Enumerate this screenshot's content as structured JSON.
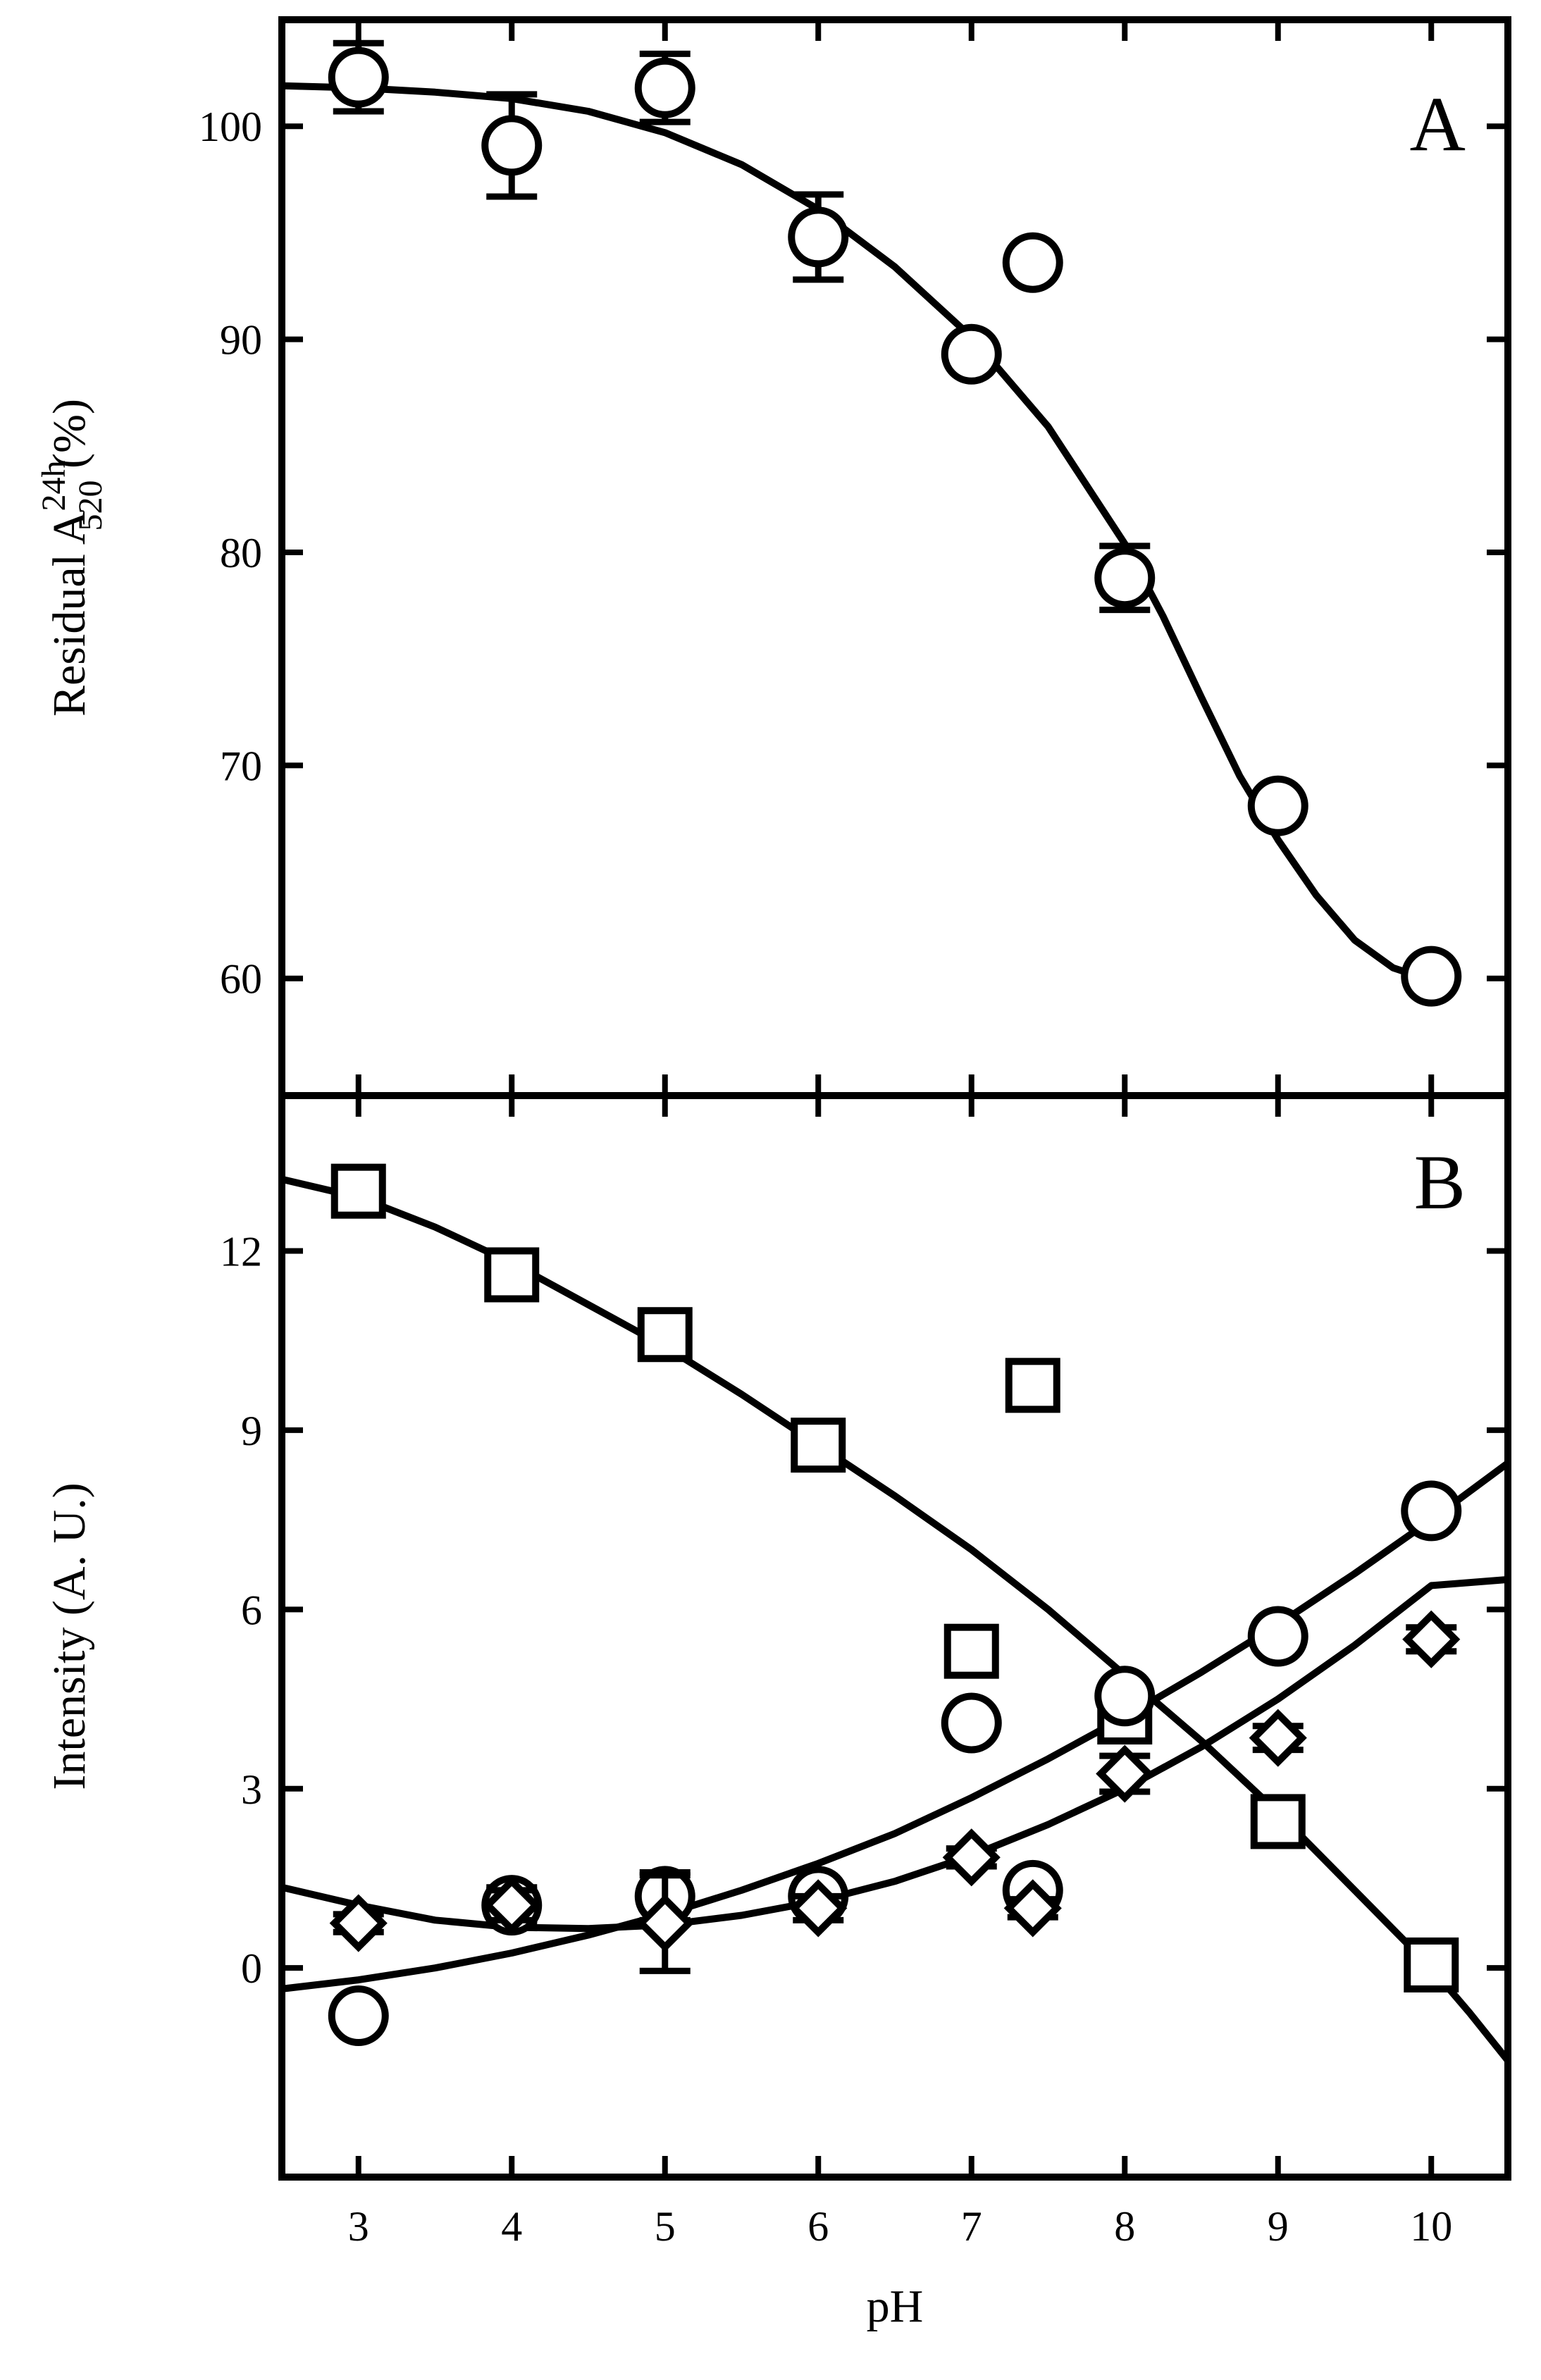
{
  "chart_data": [
    {
      "panel": "A",
      "type": "scatter",
      "panel_label": "A",
      "ylabel": {
        "prefix": "Residual A",
        "superscript": "24h",
        "subscript": "520",
        "suffix": " (%)"
      },
      "xlabel": "",
      "xlim": [
        2.5,
        10.5
      ],
      "ylim": [
        54.5,
        105
      ],
      "xticks": [
        3,
        4,
        5,
        6,
        7,
        8,
        9,
        10
      ],
      "yticks": [
        60,
        70,
        80,
        90,
        100
      ],
      "grid": false,
      "series": [
        {
          "marker": "circle",
          "points": [
            {
              "x": 3,
              "y": 102.3,
              "err": 1.6
            },
            {
              "x": 4,
              "y": 99.1,
              "err": 2.4
            },
            {
              "x": 5,
              "y": 101.8,
              "err": 1.6
            },
            {
              "x": 6,
              "y": 94.8,
              "err": 2.0
            },
            {
              "x": 7,
              "y": 89.3,
              "err": 0.5
            },
            {
              "x": 7.4,
              "y": 93.6,
              "err": 0.5
            },
            {
              "x": 8,
              "y": 78.8,
              "err": 1.5
            },
            {
              "x": 9,
              "y": 68.1,
              "err": 0.6
            },
            {
              "x": 10,
              "y": 60.1,
              "err": 0.5
            }
          ]
        }
      ],
      "fits": [
        {
          "points": [
            [
              2.5,
              101.9
            ],
            [
              3,
              101.8
            ],
            [
              3.5,
              101.6
            ],
            [
              4,
              101.3
            ],
            [
              4.5,
              100.7
            ],
            [
              5,
              99.7
            ],
            [
              5.5,
              98.2
            ],
            [
              6,
              96.1
            ],
            [
              6.5,
              93.4
            ],
            [
              7,
              90.1
            ],
            [
              7.5,
              85.9
            ],
            [
              8,
              80.4
            ],
            [
              8.25,
              77.0
            ],
            [
              8.5,
              73.2
            ],
            [
              8.75,
              69.5
            ],
            [
              9,
              66.5
            ],
            [
              9.25,
              63.9
            ],
            [
              9.5,
              61.8
            ],
            [
              9.75,
              60.5
            ],
            [
              10,
              59.9
            ]
          ]
        }
      ]
    },
    {
      "panel": "B",
      "type": "scatter",
      "panel_label": "B",
      "ylabel": "Intensity (A. U.)",
      "xlabel": "pH",
      "xlim": [
        2.5,
        10.5
      ],
      "ylim": [
        -3.5,
        14.6
      ],
      "xticks": [
        3,
        4,
        5,
        6,
        7,
        8,
        9,
        10
      ],
      "yticks": [
        0,
        3,
        6,
        9,
        12
      ],
      "grid": false,
      "series": [
        {
          "marker": "square",
          "points": [
            {
              "x": 3,
              "y": 13.0,
              "err": 0.4
            },
            {
              "x": 4,
              "y": 11.6,
              "err": 0.3
            },
            {
              "x": 5,
              "y": 10.6,
              "err": 0.2
            },
            {
              "x": 6,
              "y": 8.75,
              "err": 0.15
            },
            {
              "x": 7,
              "y": 5.3,
              "err": 0.2
            },
            {
              "x": 7.4,
              "y": 9.75,
              "err": 0.35
            },
            {
              "x": 8,
              "y": 4.2,
              "err": 0.3
            },
            {
              "x": 9,
              "y": 2.45,
              "err": 0.15
            },
            {
              "x": 10,
              "y": 0.05,
              "err": 0.15
            }
          ]
        },
        {
          "marker": "circle",
          "points": [
            {
              "x": 3,
              "y": -0.8,
              "err": 0.2
            },
            {
              "x": 4,
              "y": 1.05,
              "err": 0.3
            },
            {
              "x": 5,
              "y": 1.2,
              "err": 0.4
            },
            {
              "x": 6,
              "y": 1.2,
              "err": 0.2
            },
            {
              "x": 7,
              "y": 4.1,
              "err": 0.15
            },
            {
              "x": 7.4,
              "y": 1.3,
              "err": 0.15
            },
            {
              "x": 8,
              "y": 4.55,
              "err": 0.15
            },
            {
              "x": 9,
              "y": 5.55,
              "err": 0.15
            },
            {
              "x": 10,
              "y": 7.65,
              "err": 0.2
            }
          ]
        },
        {
          "marker": "diamond",
          "points": [
            {
              "x": 3,
              "y": 0.75,
              "err": 0.15
            },
            {
              "x": 4,
              "y": 1.05,
              "err": 0.25
            },
            {
              "x": 5,
              "y": 0.75,
              "err": 0.8
            },
            {
              "x": 6,
              "y": 1.0,
              "err": 0.2
            },
            {
              "x": 7,
              "y": 1.85,
              "err": 0.15
            },
            {
              "x": 7.4,
              "y": 1.0,
              "err": 0.15
            },
            {
              "x": 8,
              "y": 3.25,
              "err": 0.3
            },
            {
              "x": 9,
              "y": 3.85,
              "err": 0.2
            },
            {
              "x": 10,
              "y": 5.5,
              "err": 0.2
            }
          ]
        }
      ],
      "fits": [
        {
          "points": [
            [
              2.5,
              13.2
            ],
            [
              3,
              12.9
            ],
            [
              3.5,
              12.4
            ],
            [
              4,
              11.8
            ],
            [
              4.5,
              11.1
            ],
            [
              5,
              10.4
            ],
            [
              5.5,
              9.6
            ],
            [
              6,
              8.75
            ],
            [
              6.5,
              7.9
            ],
            [
              7,
              7.0
            ],
            [
              7.5,
              6.0
            ],
            [
              8,
              4.9
            ],
            [
              8.5,
              3.8
            ],
            [
              9,
              2.6
            ],
            [
              9.5,
              1.3
            ],
            [
              10,
              0.0
            ],
            [
              10.25,
              -0.75
            ],
            [
              10.5,
              -1.55
            ]
          ]
        },
        {
          "points": [
            [
              2.5,
              -0.35
            ],
            [
              3,
              -0.2
            ],
            [
              3.5,
              0.0
            ],
            [
              4,
              0.25
            ],
            [
              4.5,
              0.55
            ],
            [
              5,
              0.9
            ],
            [
              5.5,
              1.3
            ],
            [
              6,
              1.75
            ],
            [
              6.5,
              2.25
            ],
            [
              7,
              2.85
            ],
            [
              7.5,
              3.5
            ],
            [
              8,
              4.2
            ],
            [
              8.5,
              4.95
            ],
            [
              9,
              5.75
            ],
            [
              9.5,
              6.6
            ],
            [
              10,
              7.5
            ],
            [
              10.5,
              8.45
            ]
          ]
        },
        {
          "points": [
            [
              2.5,
              1.35
            ],
            [
              3,
              1.05
            ],
            [
              3.5,
              0.8
            ],
            [
              4,
              0.68
            ],
            [
              4.5,
              0.66
            ],
            [
              5,
              0.72
            ],
            [
              5.5,
              0.88
            ],
            [
              6,
              1.12
            ],
            [
              6.5,
              1.45
            ],
            [
              7,
              1.88
            ],
            [
              7.5,
              2.4
            ],
            [
              8,
              3.0
            ],
            [
              8.5,
              3.7
            ],
            [
              9,
              4.5
            ],
            [
              9.5,
              5.4
            ],
            [
              10,
              6.4
            ],
            [
              10.5,
              6.5
            ]
          ]
        }
      ]
    }
  ]
}
